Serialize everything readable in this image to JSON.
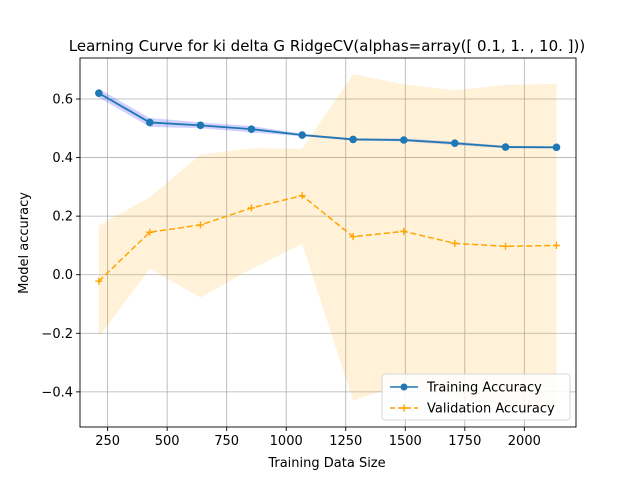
{
  "chart_data": {
    "type": "line",
    "title": "Learning Curve for ki delta G RidgeCV(alphas=array([ 0.1,  1. , 10. ]))",
    "xlabel": "Training Data Size",
    "ylabel": "Model accuracy",
    "xlim": [
      134,
      2217
    ],
    "ylim": [
      -0.52,
      0.74
    ],
    "xticks": [
      250,
      500,
      750,
      1000,
      1250,
      1500,
      1750,
      2000
    ],
    "yticks": [
      -0.4,
      -0.2,
      0.0,
      0.2,
      0.4,
      0.6
    ],
    "xtick_labels": [
      "250",
      "500",
      "750",
      "1000",
      "1250",
      "1500",
      "1750",
      "2000"
    ],
    "ytick_labels": [
      "−0.4",
      "−0.2",
      "0.0",
      "0.2",
      "0.4",
      "0.6"
    ],
    "grid": true,
    "legend_position": "lower-right",
    "x": [
      213,
      427,
      640,
      854,
      1067,
      1281,
      1494,
      1708,
      1921,
      2135
    ],
    "series": [
      {
        "name": "Training Accuracy",
        "color": "#1f77b4",
        "band_color": "#0000ff",
        "linestyle": "solid",
        "marker": "circle",
        "values": [
          0.62,
          0.52,
          0.51,
          0.497,
          0.477,
          0.462,
          0.46,
          0.449,
          0.436,
          0.435
        ],
        "upper": [
          0.635,
          0.535,
          0.52,
          0.508,
          0.481,
          0.466,
          0.465,
          0.455,
          0.44,
          0.438
        ],
        "lower": [
          0.605,
          0.505,
          0.5,
          0.486,
          0.473,
          0.458,
          0.455,
          0.443,
          0.432,
          0.432
        ]
      },
      {
        "name": "Validation Accuracy",
        "color": "#ffa500",
        "band_color": "#ffa500",
        "linestyle": "dashed",
        "marker": "plus",
        "values": [
          -0.022,
          0.145,
          0.17,
          0.228,
          0.27,
          0.13,
          0.148,
          0.107,
          0.097,
          0.1
        ],
        "upper": [
          0.168,
          0.265,
          0.41,
          0.432,
          0.43,
          0.685,
          0.65,
          0.63,
          0.648,
          0.652
        ],
        "lower": [
          -0.212,
          0.02,
          -0.078,
          0.02,
          0.105,
          -0.43,
          -0.37,
          -0.42,
          -0.46,
          -0.455
        ]
      }
    ]
  }
}
